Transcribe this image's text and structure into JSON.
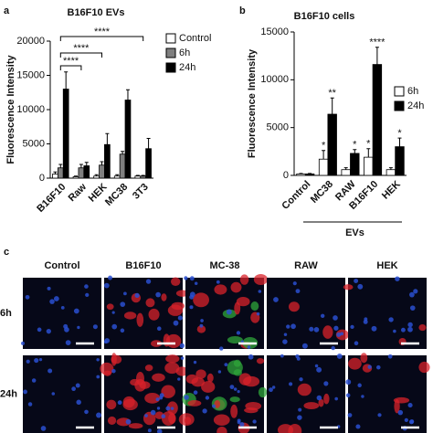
{
  "chart_data": [
    {
      "type": "bar",
      "panel": "a",
      "title": "B16F10 EVs",
      "y_label": "Fluorescence Intensity",
      "categories": [
        "B16F10",
        "Raw",
        "HEK",
        "MC38",
        "3T3"
      ],
      "series": [
        {
          "name": "Control",
          "color": "#ffffff",
          "values": [
            600,
            200,
            300,
            300,
            300
          ],
          "errors": [
            300,
            100,
            200,
            200,
            100
          ]
        },
        {
          "name": "6h",
          "color": "#7f7f7f",
          "values": [
            1500,
            1500,
            1900,
            3500,
            300
          ],
          "errors": [
            500,
            500,
            500,
            400,
            100
          ]
        },
        {
          "name": "24h",
          "color": "#000000",
          "values": [
            13000,
            1800,
            4900,
            11400,
            4300
          ],
          "errors": [
            2500,
            500,
            1600,
            1500,
            1500
          ]
        }
      ],
      "brackets": [
        {
          "label": "****",
          "categories": [
            "B16F10",
            "Raw"
          ]
        },
        {
          "label": "****",
          "categories": [
            "B16F10",
            "HEK"
          ]
        },
        {
          "label": "****",
          "categories": [
            "B16F10",
            "3T3"
          ]
        }
      ],
      "ylim": [
        0,
        20000
      ],
      "yticks": [
        0,
        5000,
        10000,
        15000,
        20000
      ],
      "legend": "top-right"
    },
    {
      "type": "bar",
      "panel": "b",
      "title": "B16F10 cells",
      "y_label": "Fluorescence Intensity",
      "x_label": "EVs",
      "categories": [
        "Control",
        "MC38",
        "RAW",
        "B16F10",
        "HEK"
      ],
      "series": [
        {
          "name": "6h",
          "color": "#ffffff",
          "values": [
            150,
            1700,
            600,
            1900,
            600
          ],
          "errors": [
            50,
            900,
            200,
            900,
            200
          ],
          "significance": [
            null,
            "*",
            null,
            "*",
            null
          ]
        },
        {
          "name": "24h",
          "color": "#000000",
          "values": [
            150,
            6400,
            2300,
            11600,
            3000
          ],
          "errors": [
            50,
            1700,
            400,
            1800,
            900
          ],
          "significance": [
            null,
            "**",
            "*",
            "****",
            "*"
          ]
        }
      ],
      "ylim": [
        0,
        15000
      ],
      "yticks": [
        0,
        5000,
        10000,
        15000
      ],
      "legend": "right"
    }
  ],
  "images_panel": {
    "panel": "c",
    "columns": [
      "Control",
      "B16F10",
      "MC-38",
      "RAW",
      "HEK"
    ],
    "rows": [
      "6h",
      "24h"
    ]
  }
}
